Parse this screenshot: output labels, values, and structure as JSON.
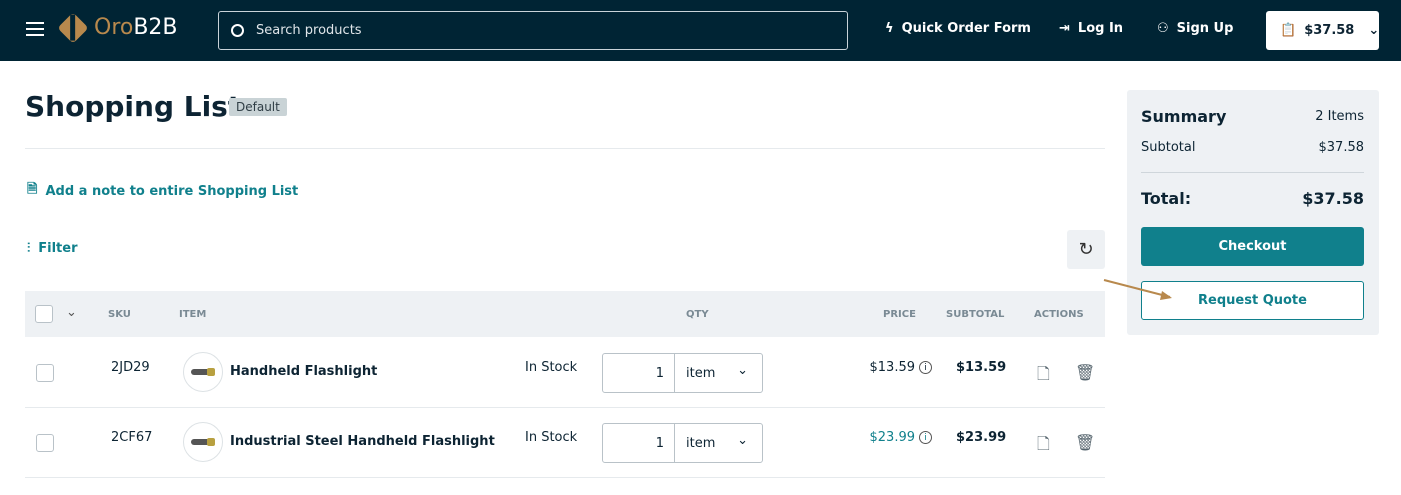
{
  "header": {
    "brand_oro": "Oro",
    "brand_b2b": "B2B",
    "search_placeholder": "Search products",
    "quick_order": "Quick Order Form",
    "login": "Log In",
    "signup": "Sign Up",
    "cart_total": "$37.58"
  },
  "page": {
    "title": "Shopping List",
    "badge": "Default",
    "add_note": "Add a note to entire Shopping List",
    "filter": "Filter"
  },
  "table": {
    "headers": {
      "sku": "SKU",
      "item": "ITEM",
      "qty": "QTY",
      "price": "PRICE",
      "subtotal": "SUBTOTAL",
      "actions": "ACTIONS"
    },
    "rows": [
      {
        "sku": "2JD29",
        "name": "Handheld Flashlight",
        "stock": "In Stock",
        "qty": "1",
        "unit": "item",
        "price": "$13.59",
        "subtotal": "$13.59"
      },
      {
        "sku": "2CF67",
        "name": "Industrial Steel Handheld Flashlight",
        "stock": "In Stock",
        "qty": "1",
        "unit": "item",
        "price": "$23.99",
        "subtotal": "$23.99"
      }
    ]
  },
  "summary": {
    "title": "Summary",
    "items": "2 Items",
    "subtotal_label": "Subtotal",
    "subtotal": "$37.58",
    "total_label": "Total:",
    "total": "$37.58",
    "checkout": "Checkout",
    "request_quote": "Request Quote"
  },
  "colors": {
    "header_bg": "#002434",
    "accent": "#10808c",
    "checkout_bg": "#10808c",
    "brand_gold": "#b8894d"
  }
}
